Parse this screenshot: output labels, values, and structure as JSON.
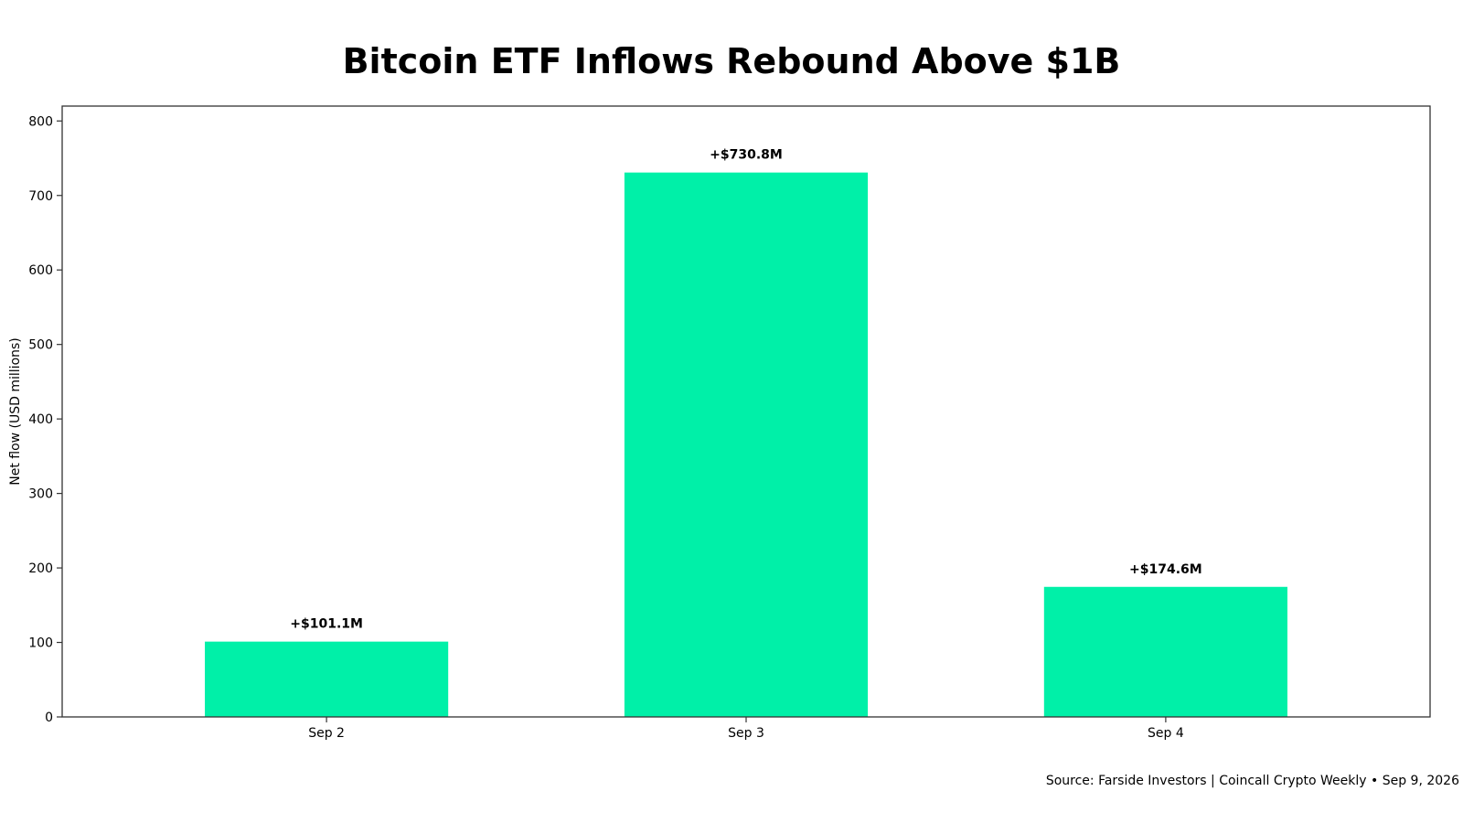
{
  "chart_data": {
    "type": "bar",
    "title": "Bitcoin ETF Inflows Rebound Above $1B",
    "xlabel": "",
    "ylabel": "Net flow (USD millions)",
    "categories": [
      "Sep 2",
      "Sep 3",
      "Sep 4"
    ],
    "values": [
      101.1,
      730.8,
      174.6
    ],
    "data_labels": [
      "+$101.1M",
      "+$730.8M",
      "+$174.6M"
    ],
    "ylim": [
      0,
      820
    ],
    "yticks": [
      0,
      100,
      200,
      300,
      400,
      500,
      600,
      700,
      800
    ],
    "grid": false,
    "bar_color": "#00F0A8",
    "source": "Source: Farside Investors | Coincall Crypto Weekly • Sep 9, 2026"
  }
}
